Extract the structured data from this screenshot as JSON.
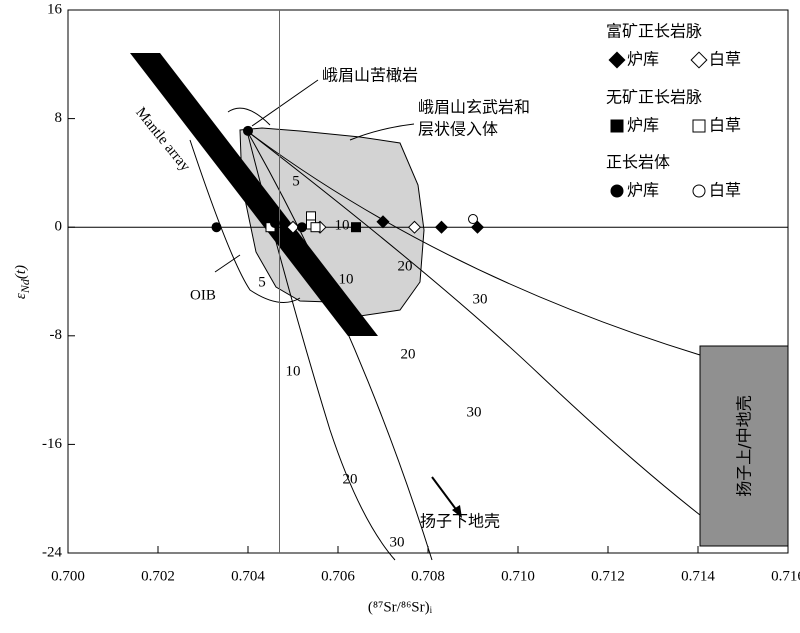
{
  "chart_data": {
    "type": "scatter",
    "xlabel": "(⁸⁷Sr/⁸⁶Sr)ᵢ",
    "ylabel": {
      "symbol": "ε",
      "subscript": "Nd",
      "rest": "(t)"
    },
    "xlim": [
      0.7,
      0.716
    ],
    "xticks": [
      {
        "value": 0.7,
        "label": "0.700"
      },
      {
        "value": 0.702,
        "label": "0.702"
      },
      {
        "value": 0.704,
        "label": "0.704"
      },
      {
        "value": 0.706,
        "label": "0.706"
      },
      {
        "value": 0.708,
        "label": "0.708"
      },
      {
        "value": 0.71,
        "label": "0.710"
      },
      {
        "value": 0.712,
        "label": "0.712"
      },
      {
        "value": 0.714,
        "label": "0.714"
      },
      {
        "value": 0.716,
        "label": "0.716"
      }
    ],
    "ylim": [
      -24,
      16
    ],
    "yticks": [
      -24,
      -16,
      -8,
      0,
      8,
      16
    ],
    "reference_lines": {
      "x": 0.7047,
      "y": 0
    },
    "groups": [
      {
        "title": "富矿正长岩脉",
        "series": [
          {
            "name": "炉库",
            "marker": "diamond",
            "filled": true,
            "x": [
              0.707,
              0.7083,
              0.7091
            ],
            "values": [
              0.4,
              0,
              0
            ]
          },
          {
            "name": "白草",
            "marker": "diamond",
            "filled": false,
            "x": [
              0.705,
              0.7056,
              0.7077
            ],
            "values": [
              0,
              0,
              0
            ]
          }
        ]
      },
      {
        "title": "无矿正长岩脉",
        "series": [
          {
            "name": "炉库",
            "marker": "square",
            "filled": true,
            "x": [
              0.7064
            ],
            "values": [
              0
            ]
          },
          {
            "name": "白草",
            "marker": "square",
            "filled": false,
            "x": [
              0.7045,
              0.7054,
              0.7054,
              0.7055
            ],
            "values": [
              0,
              0.8,
              0.2,
              0
            ]
          }
        ]
      },
      {
        "title": "正长岩体",
        "series": [
          {
            "name": "炉库",
            "marker": "circle",
            "filled": true,
            "x": [
              0.704,
              0.7033,
              0.7046,
              0.7052
            ],
            "values": [
              7.1,
              0,
              0.3,
              0
            ]
          },
          {
            "name": "白草",
            "marker": "circle",
            "filled": false,
            "x": [
              0.709
            ],
            "values": [
              0.6
            ]
          }
        ]
      }
    ],
    "annotations": {
      "picrite": "峨眉山苦橄岩",
      "basalt1": "峨眉山玄武岩和",
      "basalt2": "层状侵入体",
      "mantle": "Mantle array",
      "oib": "OIB",
      "lower_crust": "扬子下地壳",
      "upper_crust": "扬子上/中地壳"
    },
    "curve_labels": [
      "5",
      "10",
      "20",
      "30",
      "5",
      "10",
      "20",
      "30",
      "10",
      "20",
      "30"
    ]
  }
}
